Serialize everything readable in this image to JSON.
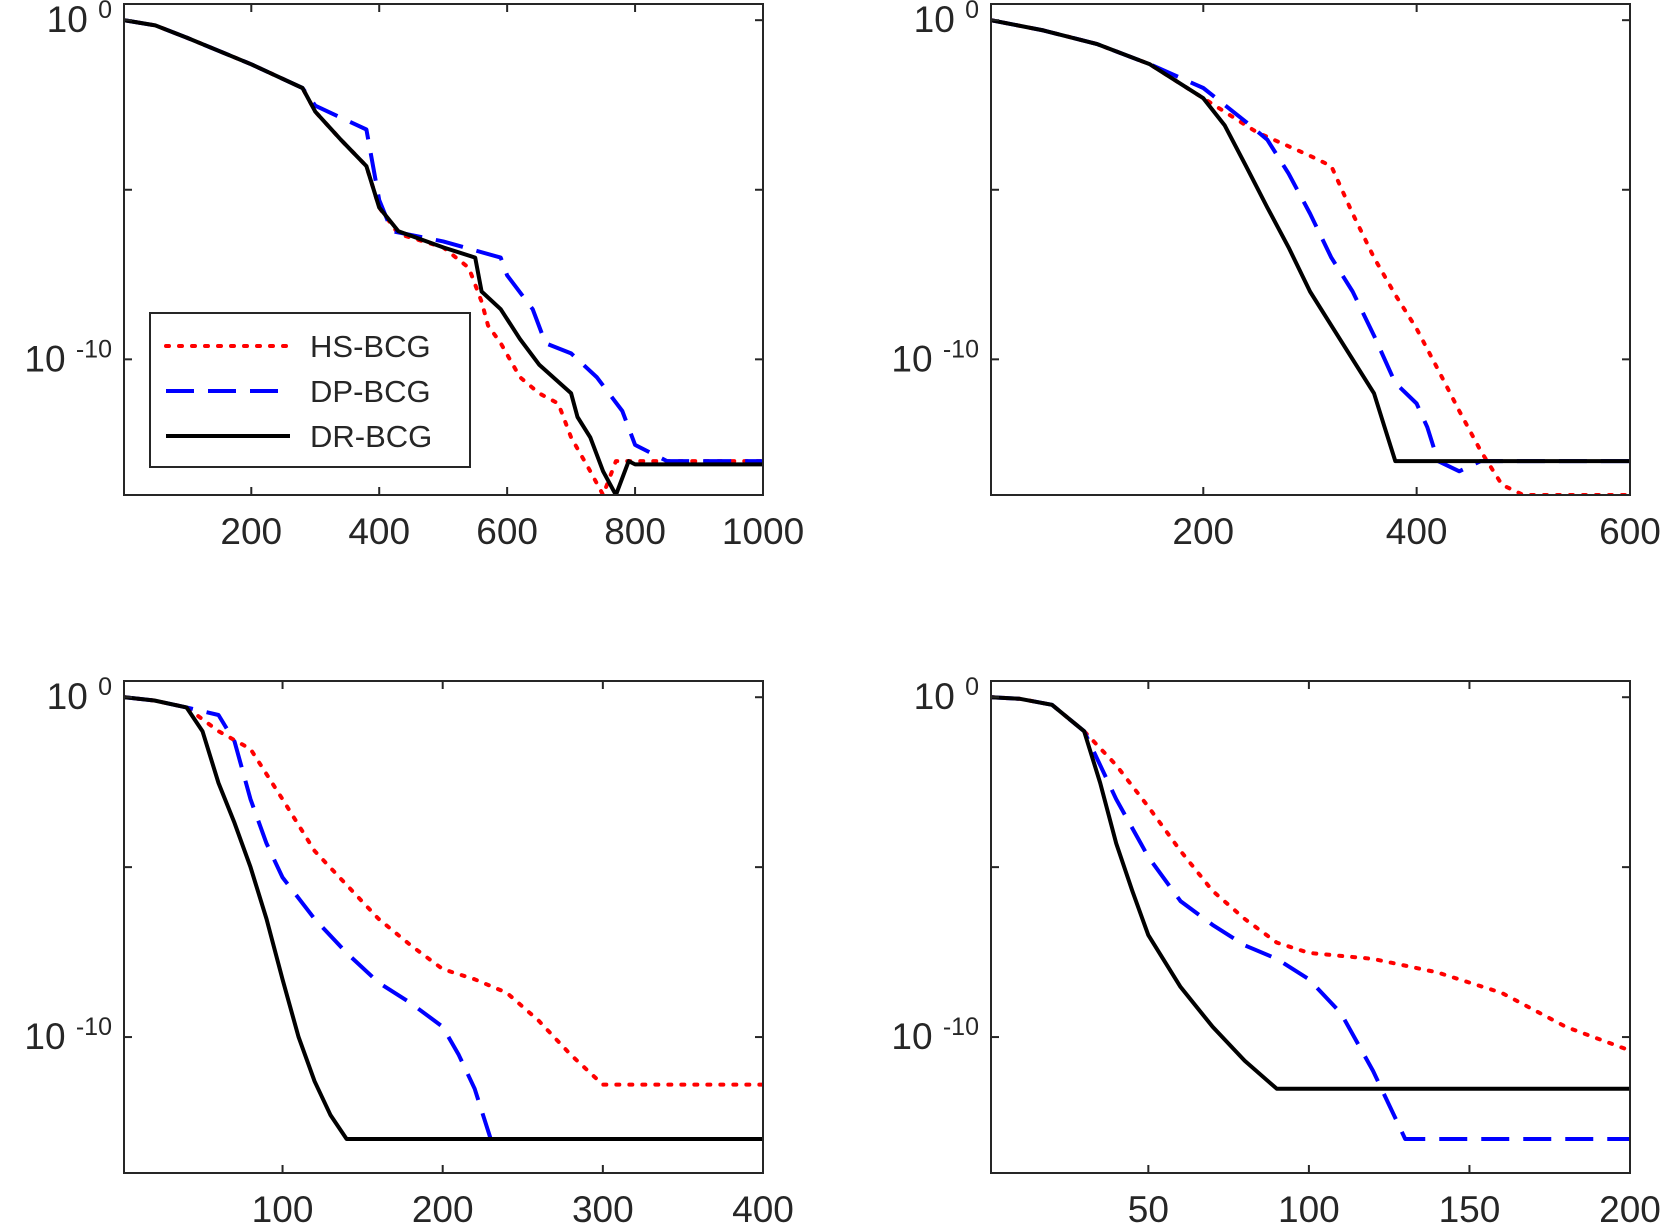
{
  "figure": {
    "y_tick_labels": [
      {
        "base": "10",
        "exponent": "0"
      },
      {
        "base": "10",
        "exponent": "-10"
      }
    ],
    "legend_entries": [
      "HS-BCG",
      "DP-BCG",
      "DR-BCG"
    ]
  },
  "series_style": [
    {
      "name": "HS-BCG",
      "color": "#ff0000",
      "dash": "dotted"
    },
    {
      "name": "DP-BCG",
      "color": "#0000ff",
      "dash": "dashed"
    },
    {
      "name": "DR-BCG",
      "color": "#000000",
      "dash": "solid"
    }
  ],
  "chart_data": [
    {
      "type": "line",
      "yscale": "log",
      "xlim": [
        1,
        1000
      ],
      "ylim": [
        1e-14,
        3
      ],
      "xticks": [
        200,
        400,
        600,
        800,
        1000
      ],
      "yticks": [
        1,
        1e-05,
        1e-10
      ],
      "legend": "bottom-left",
      "grid": false,
      "series": [
        {
          "name": "HS-BCG",
          "x": [
            1,
            50,
            100,
            200,
            280,
            300,
            340,
            380,
            400,
            430,
            500,
            540,
            560,
            570,
            590,
            620,
            650,
            680,
            700,
            730,
            750,
            770,
            800,
            1000
          ],
          "y": [
            1,
            0.7,
            0.3,
            0.05,
            0.01,
            0.002,
            0.0003,
            5e-05,
            3e-06,
            5e-07,
            2e-07,
            5e-08,
            5e-09,
            1e-09,
            3e-10,
            3e-11,
            1e-11,
            5e-12,
            5e-13,
            5e-14,
            1e-14,
            1e-13,
            1e-13,
            1e-13
          ]
        },
        {
          "name": "DP-BCG",
          "x": [
            1,
            50,
            100,
            200,
            280,
            300,
            380,
            400,
            420,
            500,
            590,
            600,
            640,
            660,
            700,
            740,
            780,
            800,
            850,
            1000
          ],
          "y": [
            1,
            0.7,
            0.3,
            0.05,
            0.01,
            0.003,
            0.0006,
            5e-06,
            6e-07,
            3e-07,
            1e-07,
            3e-08,
            3e-09,
            3e-10,
            1.5e-10,
            3e-11,
            3e-12,
            3e-13,
            1e-13,
            1e-13
          ]
        },
        {
          "name": "DR-BCG",
          "x": [
            1,
            50,
            100,
            200,
            280,
            300,
            340,
            380,
            400,
            430,
            500,
            550,
            560,
            590,
            620,
            650,
            700,
            710,
            730,
            750,
            770,
            790,
            800,
            1000
          ],
          "y": [
            1,
            0.7,
            0.3,
            0.05,
            0.01,
            0.002,
            0.0003,
            5e-05,
            3e-06,
            6e-07,
            2e-07,
            1e-07,
            1e-08,
            3e-09,
            4e-10,
            7e-11,
            1e-11,
            2e-12,
            5e-13,
            5e-14,
            1e-14,
            1e-13,
            8e-14,
            8e-14
          ]
        }
      ]
    },
    {
      "type": "line",
      "yscale": "log",
      "xlim": [
        1,
        600
      ],
      "ylim": [
        1e-14,
        3
      ],
      "xticks": [
        200,
        400,
        600
      ],
      "yticks": [
        1,
        1e-05,
        1e-10
      ],
      "grid": false,
      "series": [
        {
          "name": "HS-BCG",
          "x": [
            1,
            50,
            100,
            150,
            200,
            250,
            300,
            320,
            340,
            360,
            380,
            400,
            420,
            440,
            460,
            480,
            500,
            550,
            600
          ],
          "y": [
            1,
            0.5,
            0.2,
            0.05,
            0.005,
            0.0005,
            0.0001,
            5e-05,
            2e-06,
            1e-07,
            8e-09,
            8e-10,
            5e-11,
            3e-12,
            2e-13,
            2e-14,
            8e-15,
            6e-15,
            5e-15
          ]
        },
        {
          "name": "DP-BCG",
          "x": [
            1,
            50,
            100,
            150,
            200,
            240,
            260,
            280,
            300,
            320,
            340,
            360,
            380,
            400,
            410,
            420,
            440,
            460,
            500,
            550,
            600
          ],
          "y": [
            1,
            0.5,
            0.2,
            0.05,
            0.01,
            0.001,
            0.0003,
            3e-05,
            2e-06,
            1e-07,
            1e-08,
            5e-10,
            2e-11,
            5e-12,
            1e-12,
            1e-13,
            5e-14,
            1e-13,
            1e-13,
            1e-13,
            1e-13
          ]
        },
        {
          "name": "DR-BCG",
          "x": [
            1,
            50,
            100,
            150,
            200,
            220,
            240,
            260,
            280,
            300,
            320,
            340,
            360,
            370,
            380,
            400,
            600
          ],
          "y": [
            1,
            0.5,
            0.2,
            0.05,
            0.005,
            0.0008,
            5e-05,
            3e-06,
            2e-07,
            1e-08,
            1e-09,
            1e-10,
            1e-11,
            1e-12,
            1e-13,
            1e-13,
            1e-13
          ]
        }
      ]
    },
    {
      "type": "line",
      "yscale": "log",
      "xlim": [
        1,
        400
      ],
      "ylim": [
        1e-14,
        3
      ],
      "xticks": [
        100,
        200,
        300,
        400
      ],
      "yticks": [
        1,
        1e-05,
        1e-10
      ],
      "grid": false,
      "series": [
        {
          "name": "HS-BCG",
          "x": [
            1,
            20,
            40,
            60,
            80,
            100,
            120,
            140,
            160,
            180,
            200,
            220,
            240,
            260,
            280,
            300,
            350,
            400
          ],
          "y": [
            1,
            0.8,
            0.5,
            0.1,
            0.03,
            0.001,
            3e-05,
            3e-06,
            3e-07,
            5e-08,
            1e-08,
            5e-09,
            2e-09,
            3e-10,
            3e-11,
            4e-12,
            4e-12,
            4e-12
          ]
        },
        {
          "name": "DP-BCG",
          "x": [
            1,
            20,
            40,
            60,
            70,
            80,
            90,
            100,
            120,
            140,
            160,
            180,
            200,
            210,
            220,
            230,
            400
          ],
          "y": [
            1,
            0.8,
            0.5,
            0.3,
            0.05,
            0.001,
            5e-05,
            5e-06,
            3e-07,
            3e-08,
            4e-09,
            1e-09,
            2e-10,
            3e-11,
            3e-12,
            1e-13,
            1e-13
          ]
        },
        {
          "name": "DR-BCG",
          "x": [
            1,
            20,
            40,
            50,
            60,
            70,
            80,
            90,
            100,
            110,
            120,
            130,
            140,
            150,
            400
          ],
          "y": [
            1,
            0.8,
            0.5,
            0.1,
            0.003,
            0.0002,
            1e-05,
            3e-07,
            5e-09,
            1e-10,
            5e-12,
            5e-13,
            1e-13,
            1e-13,
            1e-13
          ]
        }
      ]
    },
    {
      "type": "line",
      "yscale": "log",
      "xlim": [
        1,
        200
      ],
      "ylim": [
        1e-14,
        3
      ],
      "xticks": [
        50,
        100,
        150,
        200
      ],
      "yticks": [
        1,
        1e-05,
        1e-10
      ],
      "grid": false,
      "series": [
        {
          "name": "HS-BCG",
          "x": [
            1,
            10,
            20,
            30,
            40,
            50,
            60,
            70,
            80,
            90,
            100,
            120,
            140,
            160,
            180,
            200
          ],
          "y": [
            1,
            0.9,
            0.6,
            0.1,
            0.01,
            0.0006,
            3e-05,
            2e-06,
            3e-07,
            6e-08,
            3e-08,
            2e-08,
            8e-09,
            2e-09,
            2e-10,
            4e-11
          ]
        },
        {
          "name": "DP-BCG",
          "x": [
            1,
            10,
            20,
            30,
            35,
            40,
            50,
            60,
            70,
            80,
            90,
            100,
            110,
            120,
            130,
            200
          ],
          "y": [
            1,
            0.9,
            0.6,
            0.1,
            0.01,
            0.001,
            2e-05,
            1e-06,
            2e-07,
            5e-08,
            2e-08,
            5e-09,
            5e-10,
            1e-11,
            1e-13,
            1e-13
          ]
        },
        {
          "name": "DR-BCG",
          "x": [
            1,
            10,
            20,
            30,
            35,
            40,
            45,
            50,
            60,
            70,
            80,
            90,
            200
          ],
          "y": [
            1,
            0.9,
            0.6,
            0.1,
            0.003,
            5e-05,
            2e-06,
            1e-07,
            3e-09,
            2e-10,
            2e-11,
            3e-12,
            3e-12
          ]
        }
      ]
    }
  ]
}
